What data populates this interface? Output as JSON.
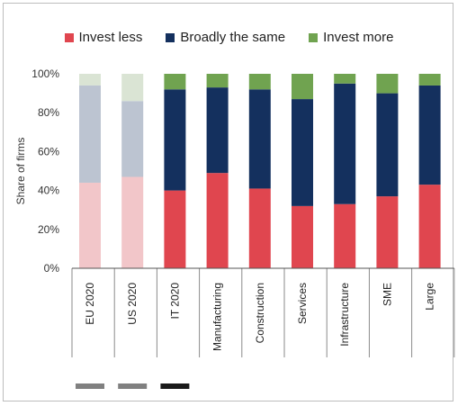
{
  "chart_data": {
    "type": "bar",
    "stacked": true,
    "ylabel": "Share of firms",
    "ylim": [
      0,
      100
    ],
    "yticks": [
      "0%",
      "20%",
      "40%",
      "60%",
      "80%",
      "100%"
    ],
    "categories": [
      "EU 2020",
      "US 2020",
      "IT 2020",
      "Manufacturing",
      "Construction",
      "Services",
      "Infrastructure",
      "SME",
      "Large"
    ],
    "faded_categories": [
      "EU 2020",
      "US 2020"
    ],
    "legend_position": "top",
    "series": [
      {
        "name": "Invest less",
        "color": "#e0464f",
        "faded_color": "#f2c6c9",
        "values": [
          44,
          47,
          40,
          49,
          41,
          32,
          33,
          37,
          43
        ]
      },
      {
        "name": "Broadly the same",
        "color": "#14305e",
        "faded_color": "#bcc4d1",
        "values": [
          50,
          39,
          52,
          44,
          51,
          55,
          62,
          53,
          51
        ]
      },
      {
        "name": "Invest more",
        "color": "#70a350",
        "faded_color": "#dae4d4",
        "values": [
          6,
          14,
          8,
          7,
          8,
          13,
          5,
          10,
          6
        ]
      }
    ],
    "bottom_markers": [
      {
        "color": "#808080",
        "span": [
          0,
          1
        ]
      },
      {
        "color": "#1a1a1a",
        "span": [
          2,
          2
        ]
      }
    ]
  }
}
